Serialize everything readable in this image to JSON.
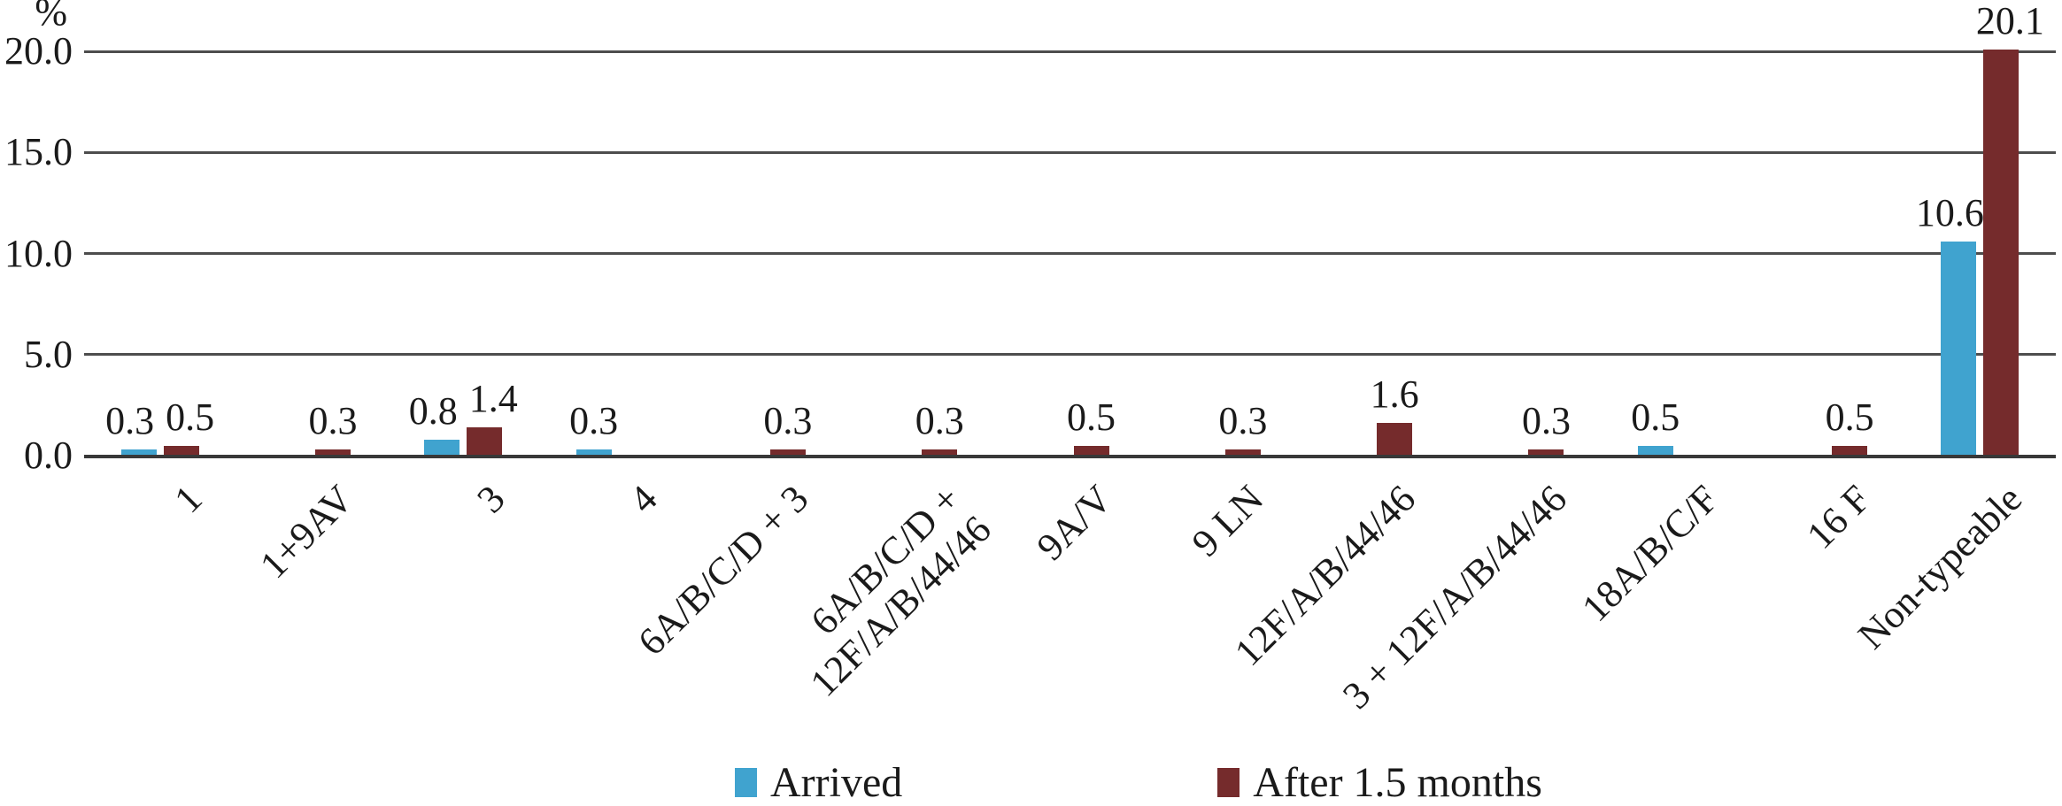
{
  "ylabel": "%",
  "chart_data": {
    "type": "bar",
    "title": "",
    "xlabel": "",
    "ylabel": "%",
    "ylim": [
      0,
      20
    ],
    "grid": true,
    "data_labels": true,
    "label_decimals": 1,
    "legend_position": "bottom",
    "axis_color": "#383838",
    "gridline_color": "#4d4d4d",
    "yticks": [
      {
        "value": 20,
        "label": "20.0"
      },
      {
        "value": 15,
        "label": "15.0"
      },
      {
        "value": 10,
        "label": "10.0"
      },
      {
        "value": 5,
        "label": "5.0"
      },
      {
        "value": 0,
        "label": "0.0"
      }
    ],
    "categories": [
      "1",
      "1+9AV",
      "3",
      "4",
      "6A/B/C/D + 3",
      "6A/B/C/D +\n12F/A/B/44/46",
      "9A/V",
      "9 LN",
      "12F/A/B/44/46",
      "3 + 12F/A/B/44/46",
      "18A/B/C/F",
      "16 F",
      "Non-typeable"
    ],
    "series": [
      {
        "name": "Arrived",
        "color": "#40a3cf",
        "values": [
          0.3,
          null,
          0.8,
          0.3,
          null,
          null,
          null,
          null,
          null,
          null,
          0.5,
          null,
          10.6
        ]
      },
      {
        "name": "After 1.5 months",
        "color": "#752b2c",
        "values": [
          0.5,
          0.3,
          1.4,
          null,
          0.3,
          0.3,
          0.5,
          0.3,
          1.6,
          0.3,
          null,
          0.5,
          20.1
        ]
      }
    ]
  }
}
